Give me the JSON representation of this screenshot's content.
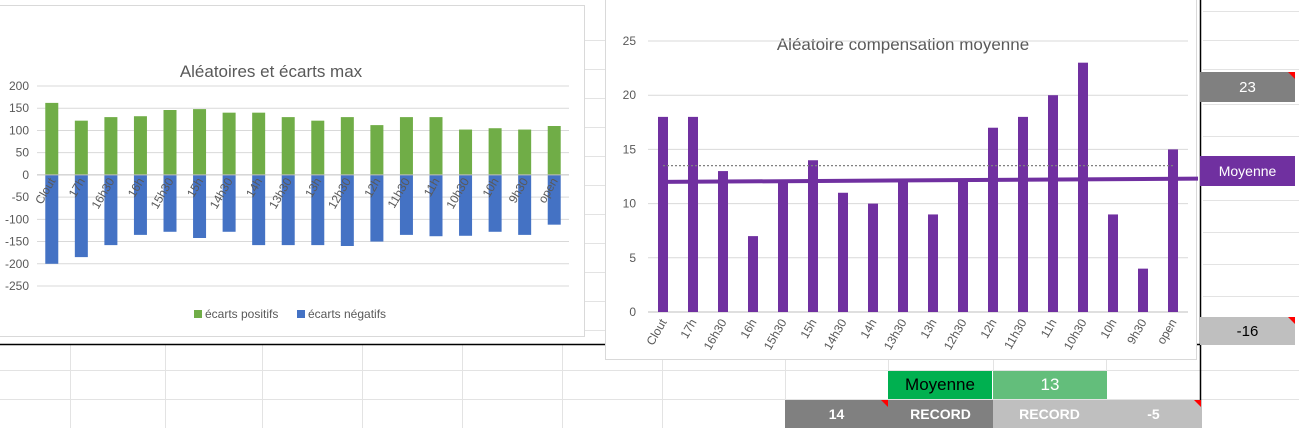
{
  "charts": [
    {
      "title": "Aléatoires et écarts max",
      "type": "bar",
      "stacked": true,
      "categories": [
        "Clout",
        "17h",
        "16h30",
        "16h",
        "15h30",
        "15h",
        "14h30",
        "14h",
        "13h30",
        "13h",
        "12h30",
        "12h",
        "11h30",
        "11h",
        "10h30",
        "10h",
        "9h30",
        "open"
      ],
      "series": [
        {
          "name": "écarts positifs",
          "color": "#70ad47",
          "values": [
            162,
            122,
            130,
            132,
            146,
            148,
            140,
            140,
            130,
            122,
            130,
            112,
            130,
            130,
            102,
            105,
            102,
            110
          ]
        },
        {
          "name": "écarts négatifs",
          "color": "#4472c4",
          "values": [
            -200,
            -185,
            -158,
            -135,
            -128,
            -142,
            -128,
            -158,
            -158,
            -158,
            -160,
            -150,
            -135,
            -138,
            -137,
            -128,
            -135,
            -112
          ]
        }
      ],
      "y_ticks": [
        "200",
        "150",
        "100",
        "50",
        "0",
        "-50",
        "-100",
        "-150",
        "-200",
        "-250"
      ],
      "ylim": [
        -250,
        200
      ],
      "legend": "bottom",
      "gridlines": true
    },
    {
      "title": "Aléatoire compensation moyenne",
      "type": "bar",
      "categories": [
        "Clout",
        "17h",
        "16h30",
        "16h",
        "15h30",
        "15h",
        "14h30",
        "14h",
        "13h30",
        "13h",
        "12h30",
        "12h",
        "11h30",
        "11h",
        "10h30",
        "10h",
        "9h30",
        "open"
      ],
      "series": [
        {
          "color": "#7030a0",
          "values": [
            18,
            18,
            13,
            7,
            12,
            14,
            11,
            10,
            12,
            9,
            12,
            17,
            18,
            20,
            23,
            9,
            4,
            15
          ]
        }
      ],
      "reference_line": {
        "value": 13.5,
        "style": "dotted",
        "color": "#808080"
      },
      "trendline": {
        "from": 12,
        "to": 12.3,
        "color": "#7030a0"
      },
      "y_ticks": [
        "25",
        "20",
        "15",
        "10",
        "5",
        "0"
      ],
      "ylim": [
        0,
        25
      ],
      "gridlines": true
    }
  ],
  "cells": {
    "max_value": "23",
    "moyenne_side_label": "Moyenne",
    "min_value": "-16",
    "moyenne_label": "Moyenne",
    "moyenne_value": "13",
    "record_high_value": "14",
    "record_label_1": "RECORD",
    "record_label_2": "RECORD",
    "record_low_value": "-5"
  },
  "colors": {
    "dark_gray": "#808080",
    "light_gray": "#bfbfbf",
    "purple": "#7030a0",
    "green_dark": "#00b050",
    "green_light": "#63be7b",
    "flag_red": "#ff0000"
  }
}
